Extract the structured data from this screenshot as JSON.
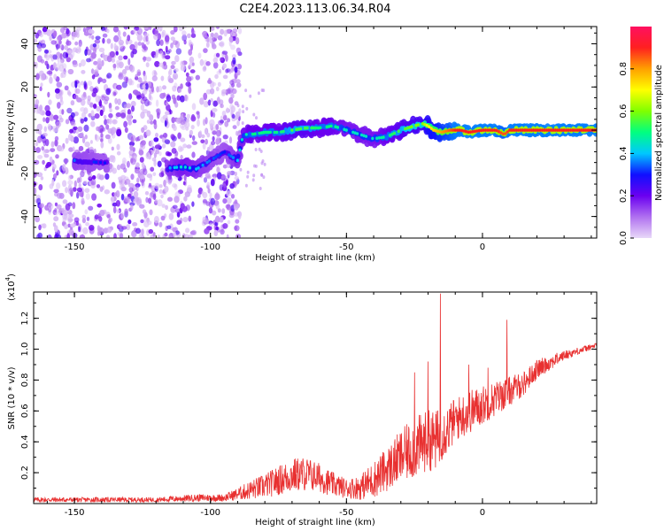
{
  "figure_title": "C2E4.2023.113.06.34.R04",
  "chart_data": [
    {
      "type": "heatmap",
      "title": "",
      "xlabel": "Height of straight line (km)",
      "ylabel": "Frequency (Hz)",
      "xlim": [
        -165,
        42
      ],
      "ylim": [
        -50,
        48
      ],
      "x_ticks": [
        -150,
        -100,
        -50,
        0
      ],
      "y_ticks": [
        -40,
        -20,
        0,
        20,
        40
      ],
      "colorbar": {
        "label": "Normalized spectral amplitude",
        "range": [
          0,
          1
        ],
        "ticks": [
          0.0,
          0.2,
          0.4,
          0.6,
          0.8
        ],
        "colors": [
          "#e8d8f8",
          "#b070f0",
          "#6a00f0",
          "#1010ff",
          "#00c8ff",
          "#00ff80",
          "#80ff00",
          "#ffff00",
          "#ffa000",
          "#ff2020",
          "#ff1060"
        ]
      },
      "signal_track": {
        "x": [
          -150,
          -140,
          -120,
          -110,
          -105,
          -95,
          -90,
          -88,
          -85,
          -80,
          -75,
          -70,
          -65,
          -60,
          -55,
          -50,
          -45,
          -40,
          -35,
          -30,
          -25,
          -22,
          -20,
          -18,
          -15,
          -12,
          -10,
          -8,
          -5,
          0,
          5,
          8,
          10,
          15,
          20,
          30,
          42
        ],
        "y": [
          -14,
          -15,
          -18,
          -17,
          -18,
          -10,
          -14,
          -2,
          -2,
          -1,
          -1,
          0,
          1,
          1,
          2,
          0,
          -2,
          -4,
          -3,
          0,
          2,
          3,
          2,
          0,
          -1,
          0,
          0,
          0,
          -1,
          0,
          0,
          -2,
          0,
          0,
          0,
          0,
          0
        ],
        "amplitude": [
          0.35,
          0.3,
          0.3,
          0.45,
          0.4,
          0.3,
          0.4,
          0.45,
          0.5,
          0.5,
          0.5,
          0.55,
          0.55,
          0.5,
          0.5,
          0.45,
          0.45,
          0.45,
          0.5,
          0.55,
          0.6,
          0.6,
          0.7,
          0.75,
          0.8,
          0.85,
          0.9,
          0.9,
          0.9,
          0.9,
          0.9,
          0.85,
          0.9,
          0.9,
          0.9,
          0.9,
          0.9
        ]
      },
      "noise_region": {
        "x_range": [
          -165,
          -89
        ],
        "y_range": [
          -50,
          48
        ],
        "amplitude_range": [
          0.02,
          0.25
        ]
      }
    },
    {
      "type": "line",
      "title": "",
      "xlabel": "Height of straight line (km)",
      "ylabel": "SNR (10 * v/v)",
      "y_multiplier_label": "(x10",
      "y_multiplier_exponent": "4",
      "y_multiplier_close": ")",
      "xlim": [
        -165,
        42
      ],
      "ylim": [
        0,
        1.37
      ],
      "x_ticks": [
        -150,
        -100,
        -50,
        0
      ],
      "y_ticks": [
        0.2,
        0.4,
        0.6,
        0.8,
        1.0,
        1.2
      ],
      "color": "#e83030",
      "envelope": {
        "x": [
          -165,
          -120,
          -105,
          -100,
          -95,
          -90,
          -85,
          -80,
          -75,
          -70,
          -65,
          -60,
          -55,
          -50,
          -45,
          -40,
          -35,
          -30,
          -25,
          -20,
          -17,
          -15,
          -12,
          -10,
          -5,
          0,
          5,
          10,
          15,
          20,
          25,
          30,
          35,
          42
        ],
        "base": [
          0.02,
          0.02,
          0.03,
          0.03,
          0.03,
          0.05,
          0.07,
          0.09,
          0.12,
          0.15,
          0.16,
          0.14,
          0.1,
          0.08,
          0.08,
          0.12,
          0.18,
          0.25,
          0.3,
          0.35,
          0.35,
          0.4,
          0.45,
          0.5,
          0.55,
          0.6,
          0.65,
          0.7,
          0.75,
          0.85,
          0.9,
          0.95,
          0.98,
          1.02
        ],
        "noise": [
          0.02,
          0.02,
          0.03,
          0.03,
          0.03,
          0.05,
          0.08,
          0.1,
          0.12,
          0.14,
          0.14,
          0.12,
          0.1,
          0.08,
          0.1,
          0.15,
          0.18,
          0.22,
          0.25,
          0.25,
          0.25,
          0.22,
          0.2,
          0.18,
          0.18,
          0.16,
          0.14,
          0.12,
          0.1,
          0.08,
          0.06,
          0.04,
          0.03,
          0.02
        ]
      },
      "peaks": [
        {
          "x": -15.5,
          "y": 1.36
        },
        {
          "x": -20,
          "y": 0.92
        },
        {
          "x": -25,
          "y": 0.85
        },
        {
          "x": 9,
          "y": 1.19
        },
        {
          "x": -5,
          "y": 0.9
        },
        {
          "x": 2,
          "y": 0.88
        }
      ]
    }
  ]
}
